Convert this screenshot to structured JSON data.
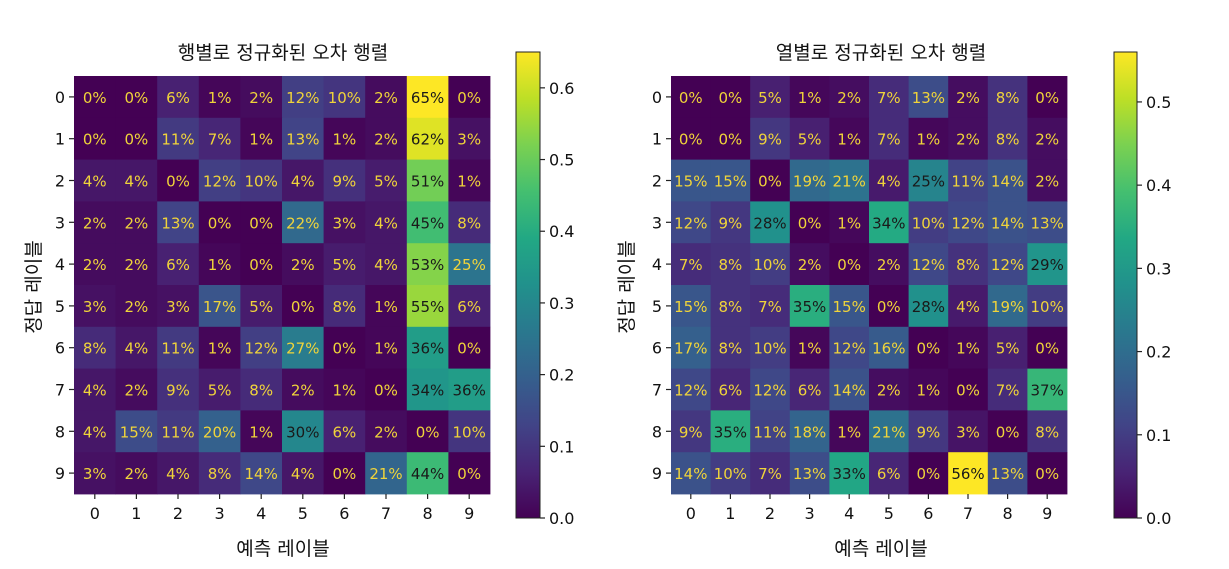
{
  "chart_data": [
    {
      "type": "heatmap",
      "title": "행별로 정규화된 오차 행렬",
      "xlabel": "예측 레이블",
      "ylabel": "정답 레이블",
      "x_ticks": [
        "0",
        "1",
        "2",
        "3",
        "4",
        "5",
        "6",
        "7",
        "8",
        "9"
      ],
      "y_ticks": [
        "0",
        "1",
        "2",
        "3",
        "4",
        "5",
        "6",
        "7",
        "8",
        "9"
      ],
      "colormap": "viridis",
      "vmin": 0.0,
      "vmax": 0.65,
      "colorbar_ticks": [
        "0.0",
        "0.1",
        "0.2",
        "0.3",
        "0.4",
        "0.5",
        "0.6"
      ],
      "values": [
        [
          0,
          0,
          6,
          1,
          2,
          12,
          10,
          2,
          65,
          0
        ],
        [
          0,
          0,
          11,
          7,
          1,
          13,
          1,
          2,
          62,
          3
        ],
        [
          4,
          4,
          0,
          12,
          10,
          4,
          9,
          5,
          51,
          1
        ],
        [
          2,
          2,
          13,
          0,
          0,
          22,
          3,
          4,
          45,
          8
        ],
        [
          2,
          2,
          6,
          1,
          0,
          2,
          5,
          4,
          53,
          25
        ],
        [
          3,
          2,
          3,
          17,
          5,
          0,
          8,
          1,
          55,
          6
        ],
        [
          8,
          4,
          11,
          1,
          12,
          27,
          0,
          1,
          36,
          0
        ],
        [
          4,
          2,
          9,
          5,
          8,
          2,
          1,
          0,
          34,
          36
        ],
        [
          4,
          15,
          11,
          20,
          1,
          30,
          6,
          2,
          0,
          10
        ],
        [
          3,
          2,
          4,
          8,
          14,
          4,
          0,
          21,
          44,
          0
        ]
      ]
    },
    {
      "type": "heatmap",
      "title": "열별로 정규화된 오차 행렬",
      "xlabel": "예측 레이블",
      "ylabel": "정답 레이블",
      "x_ticks": [
        "0",
        "1",
        "2",
        "3",
        "4",
        "5",
        "6",
        "7",
        "8",
        "9"
      ],
      "y_ticks": [
        "0",
        "1",
        "2",
        "3",
        "4",
        "5",
        "6",
        "7",
        "8",
        "9"
      ],
      "colormap": "viridis",
      "vmin": 0.0,
      "vmax": 0.56,
      "colorbar_ticks": [
        "0.0",
        "0.1",
        "0.2",
        "0.3",
        "0.4",
        "0.5"
      ],
      "values": [
        [
          0,
          0,
          5,
          1,
          2,
          7,
          13,
          2,
          8,
          0
        ],
        [
          0,
          0,
          9,
          5,
          1,
          7,
          1,
          2,
          8,
          2
        ],
        [
          15,
          15,
          0,
          19,
          21,
          4,
          25,
          11,
          14,
          2
        ],
        [
          12,
          9,
          28,
          0,
          1,
          34,
          10,
          12,
          14,
          13
        ],
        [
          7,
          8,
          10,
          2,
          0,
          2,
          12,
          8,
          12,
          29
        ],
        [
          15,
          8,
          7,
          35,
          15,
          0,
          28,
          4,
          19,
          10
        ],
        [
          17,
          8,
          10,
          1,
          12,
          16,
          0,
          1,
          5,
          0
        ],
        [
          12,
          6,
          12,
          6,
          14,
          2,
          1,
          0,
          7,
          37
        ],
        [
          9,
          35,
          11,
          18,
          1,
          21,
          9,
          3,
          0,
          8
        ],
        [
          14,
          10,
          7,
          13,
          33,
          6,
          0,
          56,
          13,
          0
        ]
      ]
    }
  ]
}
